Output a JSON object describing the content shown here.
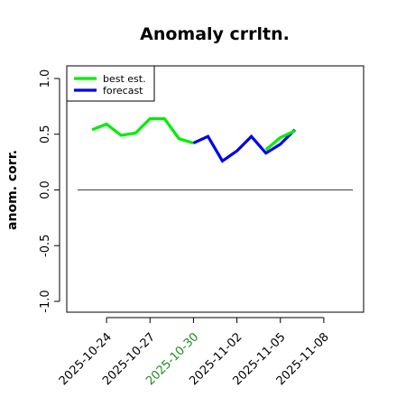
{
  "chart_data": {
    "type": "line",
    "title": "Anomaly crrltn.",
    "ylabel": "anom. corr.",
    "xlabel": "",
    "ylim": [
      -1.0,
      1.0
    ],
    "xlim": [
      "2025-10-22",
      "2025-11-10"
    ],
    "y_ticks": [
      "-1.0",
      "-0.5",
      "0.0",
      "0.5",
      "1.0"
    ],
    "x_ticks": [
      {
        "label": "2025-10-24",
        "date": "2025-10-24",
        "color": "#000000"
      },
      {
        "label": "2025-10-27",
        "date": "2025-10-27",
        "color": "#000000"
      },
      {
        "label": "2025-10-30",
        "date": "2025-10-30",
        "color": "#228b22"
      },
      {
        "label": "2025-11-02",
        "date": "2025-11-02",
        "color": "#000000"
      },
      {
        "label": "2025-11-05",
        "date": "2025-11-05",
        "color": "#000000"
      },
      {
        "label": "2025-11-08",
        "date": "2025-11-08",
        "color": "#000000"
      }
    ],
    "reference_line": 0.0,
    "grid": false,
    "legend_position": "top-left",
    "series": [
      {
        "name": "best est.",
        "color": "#00ee00",
        "points": [
          [
            "2025-10-23",
            0.54
          ],
          [
            "2025-10-24",
            0.59
          ],
          [
            "2025-10-25",
            0.49
          ],
          [
            "2025-10-26",
            0.51
          ],
          [
            "2025-10-27",
            0.64
          ],
          [
            "2025-10-28",
            0.64
          ],
          [
            "2025-10-29",
            0.46
          ],
          [
            "2025-10-30",
            0.42
          ]
        ]
      },
      {
        "name": "forecast",
        "color": "#0000ee",
        "points": [
          [
            "2025-10-30",
            0.42
          ],
          [
            "2025-10-31",
            0.48
          ],
          [
            "2025-11-01",
            0.26
          ],
          [
            "2025-11-02",
            0.35
          ],
          [
            "2025-11-03",
            0.48
          ],
          [
            "2025-11-04",
            0.33
          ],
          [
            "2025-11-05",
            0.41
          ],
          [
            "2025-11-06",
            0.54
          ]
        ]
      },
      {
        "name": "",
        "color": "#00ee00",
        "points": [
          [
            "2025-11-04",
            0.36
          ],
          [
            "2025-11-05",
            0.47
          ],
          [
            "2025-11-06",
            0.53
          ]
        ]
      }
    ]
  }
}
